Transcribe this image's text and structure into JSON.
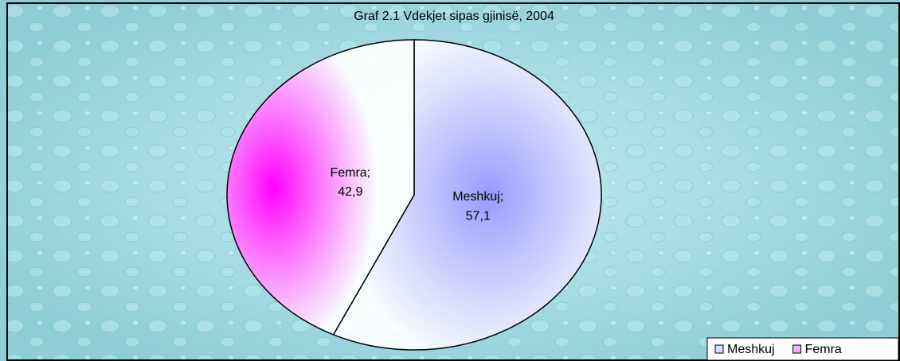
{
  "chart_data": {
    "type": "pie",
    "title": "Graf 2.1  Vdekjet sipas gjinisë, 2004",
    "categories": [
      "Meshkuj",
      "Femra"
    ],
    "values": [
      57.1,
      42.9
    ],
    "value_labels": [
      "57,1",
      "42,9"
    ],
    "colors": [
      "#9999ff",
      "#ff00ff"
    ],
    "label_separator": ";",
    "legend": "bottom-right"
  }
}
